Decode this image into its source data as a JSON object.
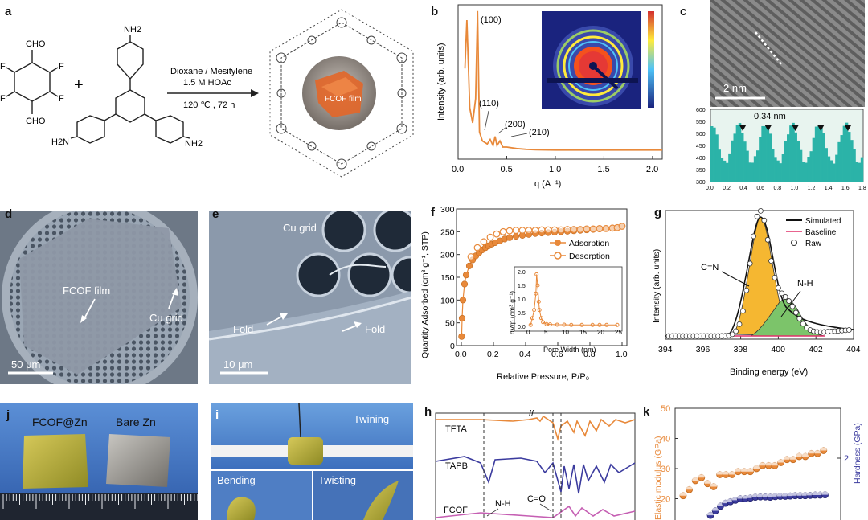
{
  "panels": {
    "a": {
      "label": "a",
      "monomer1": {
        "cho_top": "CHO",
        "cho_bottom": "CHO",
        "f1": "F",
        "f2": "F",
        "f3": "F",
        "f4": "F"
      },
      "plus": "+",
      "monomer2": {
        "nh2_top": "NH2",
        "nh2_left": "H2N",
        "nh2_right": "NH2"
      },
      "condition_solvent": "Dioxane / Mesitylene",
      "condition_acid": "1.5 M HOAc",
      "condition_temp": "120 ℃ , 72 h",
      "film_label": "FCOF film"
    },
    "b": {
      "label": "b"
    },
    "c": {
      "label": "c",
      "scale": "2 nm",
      "spacing": "0.34 nm"
    },
    "d": {
      "label": "d",
      "film": "FCOF film",
      "grid": "Cu grid",
      "scale": "50 μm"
    },
    "e": {
      "label": "e",
      "grid": "Cu grid",
      "fold1": "Fold",
      "fold2": "Fold",
      "scale": "10 μm"
    },
    "f": {
      "label": "f"
    },
    "g": {
      "label": "g"
    },
    "j": {
      "label": "j",
      "left": "FCOF@Zn",
      "right": "Bare Zn"
    },
    "i": {
      "label": "i",
      "twining": "Twining",
      "bending": "Bending",
      "twisting": "Twisting"
    },
    "h": {
      "label": "h",
      "tfta": "TFTA",
      "tapb": "TAPB",
      "fcof": "FCOF",
      "nh": "N-H",
      "co": "C=O"
    },
    "k": {
      "label": "k"
    }
  },
  "chart_data": [
    {
      "id": "b",
      "type": "line",
      "xlabel": "q (A⁻¹)",
      "ylabel": "Intensity (arb. units)",
      "xlim": [
        0,
        2.1
      ],
      "xticks": [
        0.0,
        0.5,
        1.0,
        1.5,
        2.0
      ],
      "peaks": [
        "(100)",
        "(110)",
        "(200)",
        "(210)"
      ],
      "series": [
        {
          "x": [
            0.07,
            0.09,
            0.12,
            0.15,
            0.18,
            0.2,
            0.22,
            0.25,
            0.3,
            0.33,
            0.36,
            0.38,
            0.4,
            0.43,
            0.46,
            0.5,
            0.55,
            0.6,
            0.7,
            0.8,
            1.0,
            1.5,
            2.1
          ],
          "y": [
            60,
            92,
            34,
            24,
            40,
            98,
            18,
            12,
            10,
            13,
            9,
            15,
            9,
            12,
            8,
            8,
            7.5,
            7,
            6.5,
            6.2,
            6,
            6,
            6
          ]
        }
      ]
    },
    {
      "id": "c",
      "type": "bar",
      "xticks": [
        "0.0",
        "0.2",
        "0.4",
        "0.6",
        "0.8",
        "1.0",
        "1.2",
        "1.4",
        "1.6",
        "1.8"
      ],
      "yticks": [
        "300",
        "350",
        "400",
        "450",
        "500",
        "550",
        "600"
      ],
      "ylim": [
        300,
        600
      ],
      "xlim": [
        0,
        1.8
      ]
    },
    {
      "id": "f",
      "type": "scatter",
      "xlabel": "Relative Pressure, P/P₀",
      "ylabel": "Quantity Adsorbed (cm³ g⁻¹, STP)",
      "xlim": [
        0,
        1.0
      ],
      "ylim": [
        0,
        300
      ],
      "xticks": [
        "0.0",
        "0.2",
        "0.4",
        "0.6",
        "0.8",
        "1.0"
      ],
      "yticks": [
        "0",
        "50",
        "100",
        "150",
        "200",
        "250",
        "300"
      ],
      "legend": [
        "Adsorption",
        "Desorption"
      ],
      "series": [
        {
          "name": "Adsorption",
          "x": [
            0.002,
            0.005,
            0.01,
            0.02,
            0.03,
            0.05,
            0.07,
            0.09,
            0.11,
            0.13,
            0.15,
            0.17,
            0.19,
            0.21,
            0.24,
            0.27,
            0.3,
            0.34,
            0.38,
            0.42,
            0.46,
            0.5,
            0.54,
            0.58,
            0.62,
            0.66,
            0.7,
            0.74,
            0.78,
            0.82,
            0.86,
            0.9,
            0.94,
            0.97,
            1.0
          ],
          "y": [
            20,
            60,
            100,
            135,
            155,
            175,
            188,
            197,
            204,
            210,
            215,
            219,
            223,
            226,
            230,
            234,
            237,
            240,
            242,
            244,
            246,
            247,
            248,
            249,
            250,
            251,
            252,
            253,
            254,
            255,
            256,
            257,
            258,
            259,
            262
          ]
        },
        {
          "name": "Desorption",
          "x": [
            0.06,
            0.1,
            0.14,
            0.18,
            0.22,
            0.26,
            0.3,
            0.34,
            0.38,
            0.42,
            0.46,
            0.5,
            0.54,
            0.58,
            0.62,
            0.66,
            0.7,
            0.74,
            0.78,
            0.82,
            0.86,
            0.9,
            0.94,
            0.97,
            1.0
          ],
          "y": [
            195,
            215,
            228,
            238,
            245,
            250,
            252,
            253,
            253,
            253,
            253,
            254,
            254,
            254,
            254,
            255,
            255,
            255,
            256,
            256,
            257,
            257,
            258,
            259,
            262
          ]
        }
      ],
      "inset": {
        "xlabel": "Pore Width (nm)",
        "ylabel": "dV/p (cm³ g⁻¹)",
        "xticks": [
          "0",
          "5",
          "10",
          "15",
          "20",
          "25"
        ],
        "yticks": [
          "0.0",
          "0.5",
          "1.0",
          "1.5",
          "2.0"
        ]
      }
    },
    {
      "id": "g",
      "type": "scatter",
      "xlabel": "Binding energy (eV)",
      "ylabel": "Intensity (arb. units)",
      "xlim": [
        394,
        404
      ],
      "xticks": [
        "394",
        "396",
        "398",
        "400",
        "402",
        "404"
      ],
      "legend": [
        "Simulated",
        "Baseline",
        "Raw"
      ],
      "peaks": [
        "C=N",
        "N-H"
      ]
    },
    {
      "id": "h",
      "type": "line",
      "series": [
        {
          "name": "TFTA"
        },
        {
          "name": "TAPB"
        },
        {
          "name": "FCOF"
        }
      ]
    },
    {
      "id": "k",
      "type": "scatter",
      "ylabel_left": "Elastic modulus (GPa)",
      "ylabel_right": "Hardness (GPa)",
      "yticks_left": [
        "20",
        "30",
        "40",
        "50"
      ],
      "ytick_right": "2",
      "series": [
        {
          "name": "Elastic modulus",
          "y": [
            21,
            23,
            26,
            27,
            25,
            24,
            28,
            28,
            28,
            29,
            29,
            29,
            30,
            31,
            31,
            31,
            32,
            33,
            33,
            34,
            34,
            35,
            35,
            36
          ]
        },
        {
          "name": "Hardness",
          "y": [
            14.5,
            16,
            17.5,
            18.5,
            19,
            19.5,
            20,
            20,
            20.2,
            20.5,
            20.6,
            20.6,
            20.5,
            20.7,
            20.8,
            20.8,
            20.9,
            21,
            21,
            21,
            21.1,
            21.2,
            21.2,
            21.3
          ]
        }
      ]
    }
  ]
}
